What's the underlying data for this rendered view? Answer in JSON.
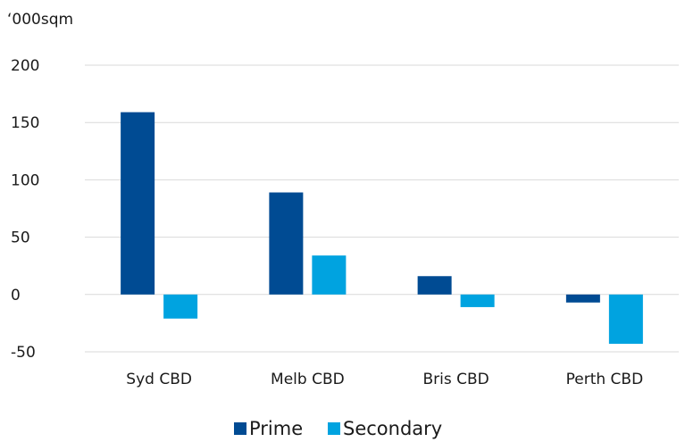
{
  "chart_data": {
    "type": "bar",
    "title": "",
    "unit_label": "‘000sqm",
    "xlabel": "",
    "ylabel": "‘000sqm",
    "ylim": [
      -50,
      200
    ],
    "y_ticks": [
      200,
      150,
      100,
      50,
      0,
      -50
    ],
    "grid": true,
    "legend_position": "bottom",
    "categories": [
      "Syd CBD",
      "Melb CBD",
      "Bris CBD",
      "Perth CBD"
    ],
    "series": [
      {
        "name": "Prime",
        "color": "#004b93",
        "values": [
          159,
          89,
          16,
          -7
        ]
      },
      {
        "name": "Secondary",
        "color": "#00a3e0",
        "values": [
          -21,
          34,
          -11,
          -43
        ]
      }
    ]
  }
}
